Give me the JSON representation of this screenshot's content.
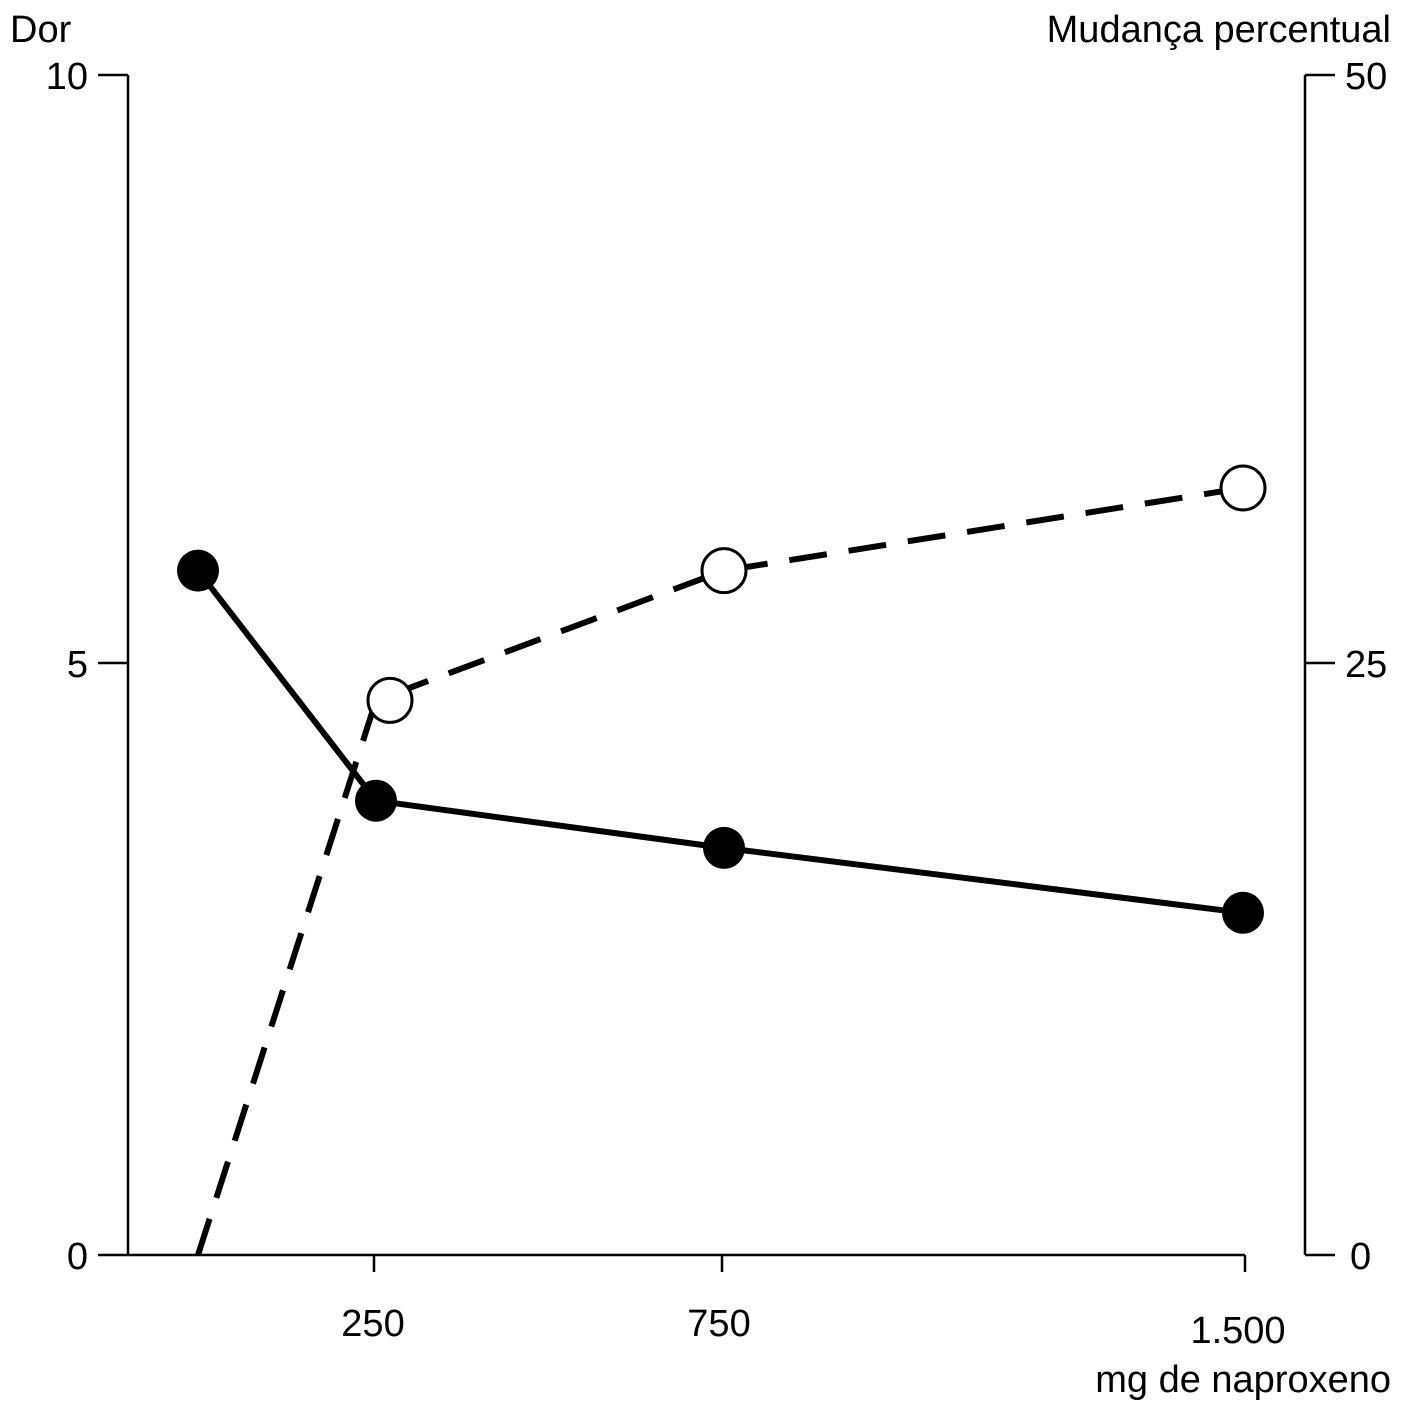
{
  "chart_data": {
    "type": "line",
    "title": "",
    "xlabel": "mg de naproxeno",
    "ylabel_left": "Dor",
    "ylabel_right": "Mudança percentual",
    "x_ticks": [
      "250",
      "750",
      "1.500"
    ],
    "y_left_ticks": [
      "0",
      "5",
      "10"
    ],
    "y_right_ticks": [
      "0",
      "25",
      "50"
    ],
    "ylim_left": [
      0,
      10
    ],
    "ylim_right": [
      0,
      50
    ],
    "grid": false,
    "series": [
      {
        "axis": "left",
        "style": "solid",
        "marker": "filled-circle",
        "color": "#000000",
        "points": [
          {
            "x": 0,
            "y": 5.8
          },
          {
            "x": 250,
            "y": 3.85
          },
          {
            "x": 750,
            "y": 3.45
          },
          {
            "x": 1500,
            "y": 2.9
          }
        ]
      },
      {
        "axis": "right",
        "style": "dashed",
        "marker": "open-circle",
        "color": "#000000",
        "points": [
          {
            "x": 0,
            "y": 0,
            "marker": false
          },
          {
            "x": 250,
            "y": 23.5
          },
          {
            "x": 750,
            "y": 29
          },
          {
            "x": 1500,
            "y": 32.5
          }
        ]
      }
    ]
  }
}
